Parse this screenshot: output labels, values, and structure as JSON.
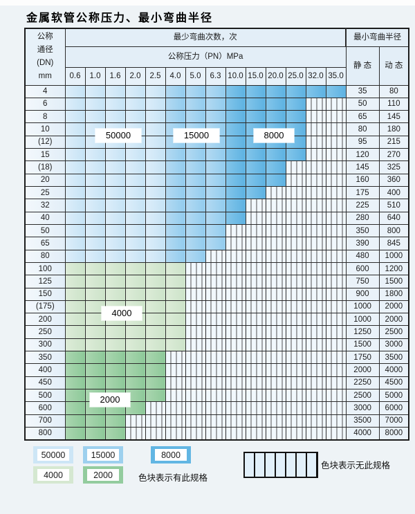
{
  "title": "金属软管公称压力、最小弯曲半径",
  "table": {
    "header": {
      "dn_lines": [
        "公称",
        "通径",
        "(DN)",
        "mm"
      ],
      "bend_times_label": "最少弯曲次数，次",
      "pressure_label": "公称压力（PN）MPa",
      "radius_label": "最小弯曲半径",
      "static_label": "静 态",
      "dynamic_label": "动 态",
      "pn_values": [
        "0.6",
        "1.0",
        "1.6",
        "2.0",
        "2.5",
        "4.0",
        "5.0",
        "6.3",
        "10.0",
        "15.0",
        "20.0",
        "25.0",
        "32.0",
        "35.0"
      ]
    },
    "cell_code_meaning": {
      "A": "50000次",
      "B": "15000次",
      "C": "8000次",
      "D": "4000次",
      "E": "2000次",
      "H": "无此规格"
    },
    "rows": [
      {
        "dn": "4",
        "cells": "AAAAABBBCCCCCC",
        "static": "35",
        "dynamic": "80"
      },
      {
        "dn": "6",
        "cells": "AAAAABBBCCCCHH",
        "static": "50",
        "dynamic": "110"
      },
      {
        "dn": "8",
        "cells": "AAAAABBBCCCCHH",
        "static": "65",
        "dynamic": "145"
      },
      {
        "dn": "10",
        "cells": "AAAAABBBCCCCHH",
        "static": "80",
        "dynamic": "180"
      },
      {
        "dn": "(12)",
        "cells": "AAAAABBBCCCCHH",
        "static": "95",
        "dynamic": "215"
      },
      {
        "dn": "15",
        "cells": "AAAAABBBCCCCHH",
        "static": "120",
        "dynamic": "270"
      },
      {
        "dn": "(18)",
        "cells": "AAAAABBBCCCHHH",
        "static": "145",
        "dynamic": "325"
      },
      {
        "dn": "20",
        "cells": "AAAAABBBCCCHHH",
        "static": "160",
        "dynamic": "360"
      },
      {
        "dn": "25",
        "cells": "AAAAABBBCCHHHH",
        "static": "175",
        "dynamic": "400"
      },
      {
        "dn": "32",
        "cells": "AAAAABBBCHHHHH",
        "static": "225",
        "dynamic": "510"
      },
      {
        "dn": "40",
        "cells": "AAAAABBBCHHHHH",
        "static": "280",
        "dynamic": "640"
      },
      {
        "dn": "50",
        "cells": "AAAAABBBHHHHHH",
        "static": "350",
        "dynamic": "800"
      },
      {
        "dn": "65",
        "cells": "AAAAABBBHHHHHH",
        "static": "390",
        "dynamic": "845"
      },
      {
        "dn": "80",
        "cells": "AAAAABBHHHHHHH",
        "static": "480",
        "dynamic": "1000"
      },
      {
        "dn": "100",
        "cells": "DDDDDDHHHHHHHH",
        "static": "600",
        "dynamic": "1200"
      },
      {
        "dn": "125",
        "cells": "DDDDDDHHHHHHHH",
        "static": "750",
        "dynamic": "1500"
      },
      {
        "dn": "150",
        "cells": "DDDDDDHHHHHHHH",
        "static": "900",
        "dynamic": "1800"
      },
      {
        "dn": "(175)",
        "cells": "DDDDDDHHHHHHHH",
        "static": "1000",
        "dynamic": "2000"
      },
      {
        "dn": "200",
        "cells": "DDDDDDHHHHHHHH",
        "static": "1000",
        "dynamic": "2000"
      },
      {
        "dn": "250",
        "cells": "DDDDDDHHHHHHHH",
        "static": "1250",
        "dynamic": "2500"
      },
      {
        "dn": "300",
        "cells": "DDDDDDHHHHHHHH",
        "static": "1500",
        "dynamic": "3000"
      },
      {
        "dn": "350",
        "cells": "EEEEEHHHHHHHHH",
        "static": "1750",
        "dynamic": "3500"
      },
      {
        "dn": "400",
        "cells": "EEEEEHHHHHHHHH",
        "static": "2000",
        "dynamic": "4000"
      },
      {
        "dn": "450",
        "cells": "EEEEEHHHHHHHHH",
        "static": "2250",
        "dynamic": "4500"
      },
      {
        "dn": "500",
        "cells": "EEEEEHHHHHHHHH",
        "static": "2500",
        "dynamic": "5000"
      },
      {
        "dn": "600",
        "cells": "EEEEHHHHHHHHHH",
        "static": "3000",
        "dynamic": "6000"
      },
      {
        "dn": "700",
        "cells": "EEEHHHHHHHHHHH",
        "static": "3500",
        "dynamic": "7000"
      },
      {
        "dn": "800",
        "cells": "EEEHHHHHHHHHHH",
        "static": "4000",
        "dynamic": "8000"
      }
    ]
  },
  "overlays": {
    "l50000": "50000",
    "l15000": "15000",
    "l8000": "8000",
    "l4000": "4000",
    "l2000": "2000"
  },
  "legend": {
    "swatches": [
      {
        "key": "A",
        "label": "50000"
      },
      {
        "key": "B",
        "label": "15000"
      },
      {
        "key": "C",
        "label": "8000"
      },
      {
        "key": "D",
        "label": "4000"
      },
      {
        "key": "E",
        "label": "2000"
      }
    ],
    "has_spec_text": "色块表示有此规格",
    "no_spec_text": "色块表示无此规格"
  },
  "colors": {
    "c50000": "#cde6f6",
    "c15000": "#9dd0ee",
    "c8000": "#62b6e3",
    "c4000": "#d5e8d1",
    "c2000": "#93cc9e",
    "hatch_bg": "#f1f8fd",
    "header_bg": "#e3eef7",
    "border": "#2b2b2b"
  }
}
